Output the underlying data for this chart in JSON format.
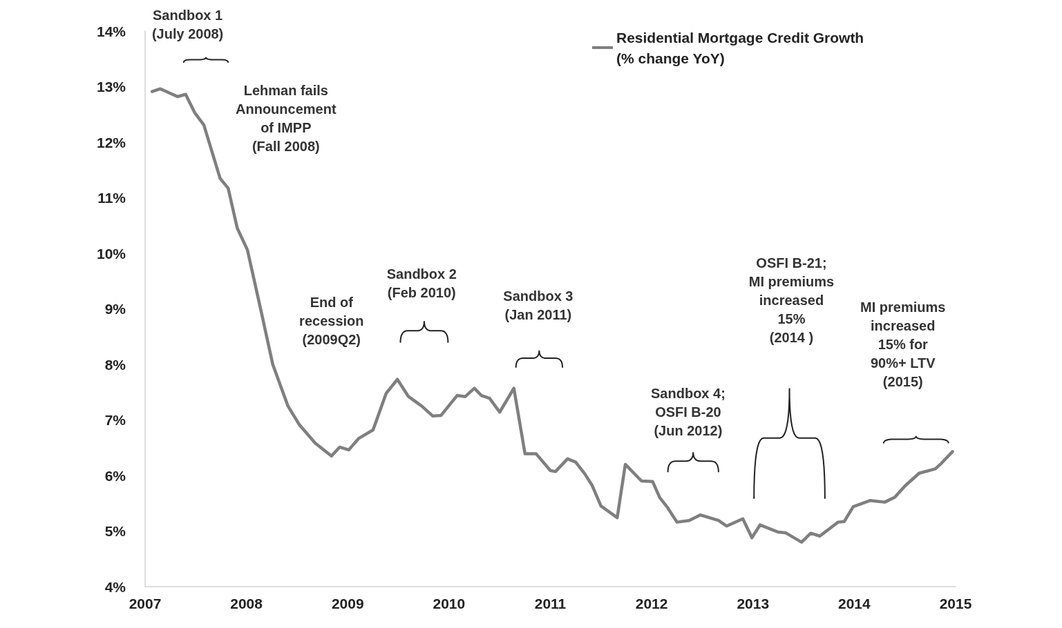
{
  "chart_data": {
    "type": "line",
    "xlim": [
      2007,
      2015
    ],
    "xticks": [
      2007,
      2008,
      2009,
      2010,
      2011,
      2012,
      2013,
      2014,
      2015
    ],
    "ylim": [
      4,
      14
    ],
    "yticks": [
      {
        "value": 4,
        "label": "4%"
      },
      {
        "value": 5,
        "label": "5%"
      },
      {
        "value": 6,
        "label": "6%"
      },
      {
        "value": 7,
        "label": "7%"
      },
      {
        "value": 8,
        "label": "8%"
      },
      {
        "value": 9,
        "label": "9%"
      },
      {
        "value": 10,
        "label": "10%"
      },
      {
        "value": 11,
        "label": "11%"
      },
      {
        "value": 12,
        "label": "12%"
      },
      {
        "value": 13,
        "label": "13%"
      },
      {
        "value": 14,
        "label": "14%"
      }
    ],
    "legend": "top right",
    "marker": "none",
    "line_style": "solid",
    "series": [
      {
        "name": "Residential Mortgage Credit Growth\n(% change YoY)",
        "color": "#7f7f7f",
        "x": [
          2007.07,
          2007.15,
          2007.32,
          2007.4,
          2007.49,
          2007.58,
          2007.74,
          2007.82,
          2007.91,
          2008.01,
          2008.14,
          2008.26,
          2008.41,
          2008.52,
          2008.68,
          2008.84,
          2008.92,
          2009.01,
          2009.11,
          2009.25,
          2009.38,
          2009.49,
          2009.6,
          2009.73,
          2009.84,
          2009.92,
          2010.08,
          2010.16,
          2010.25,
          2010.32,
          2010.4,
          2010.5,
          2010.64,
          2010.75,
          2010.86,
          2011.0,
          2011.05,
          2011.17,
          2011.25,
          2011.34,
          2011.41,
          2011.5,
          2011.66,
          2011.74,
          2011.9,
          2012.01,
          2012.08,
          2012.15,
          2012.25,
          2012.37,
          2012.48,
          2012.66,
          2012.74,
          2012.9,
          2012.99,
          2013.07,
          2013.25,
          2013.32,
          2013.48,
          2013.57,
          2013.66,
          2013.84,
          2013.9,
          2013.99,
          2014.16,
          2014.3,
          2014.4,
          2014.5,
          2014.64,
          2014.8,
          2014.86,
          2014.97
        ],
        "values": [
          12.91,
          12.96,
          12.82,
          12.86,
          12.53,
          12.31,
          11.35,
          11.17,
          10.45,
          10.06,
          9.0,
          8.0,
          7.25,
          6.92,
          6.58,
          6.35,
          6.51,
          6.46,
          6.67,
          6.82,
          7.48,
          7.73,
          7.42,
          7.25,
          7.07,
          7.08,
          7.44,
          7.42,
          7.57,
          7.44,
          7.39,
          7.14,
          7.57,
          6.39,
          6.39,
          6.09,
          6.07,
          6.3,
          6.24,
          6.03,
          5.83,
          5.45,
          5.24,
          6.2,
          5.9,
          5.89,
          5.6,
          5.44,
          5.16,
          5.19,
          5.29,
          5.19,
          5.09,
          5.22,
          4.88,
          5.11,
          4.98,
          4.97,
          4.8,
          4.96,
          4.91,
          5.16,
          5.17,
          5.44,
          5.55,
          5.52,
          5.61,
          5.81,
          6.04,
          6.12,
          6.22,
          6.43
        ]
      }
    ],
    "annotations": [
      "Sandbox 1\n(July 2008)",
      "Lehman fails\nAnnouncement\nof IMPP\n(Fall 2008)",
      "End of\nrecession\n(2009Q2)",
      "Sandbox 2\n(Feb 2010)",
      "Sandbox 3\n(Jan 2011)",
      "Sandbox 4;\nOSFI B-20\n(Jun 2012)",
      "OSFI B-21;\nMI premiums\nincreased\n15%\n(2014 )",
      "MI premiums\nincreased\n15% for\n90%+ LTV\n(2015)"
    ]
  }
}
